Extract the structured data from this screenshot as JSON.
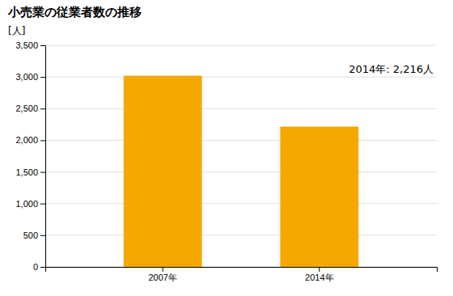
{
  "chart_data": {
    "type": "bar",
    "title": "小売業の従業者数の推移",
    "ylabel": "[人]",
    "annotation": "2014年: 2,216人",
    "categories": [
      "2007年",
      "2014年"
    ],
    "values": [
      3020,
      2216
    ],
    "color": "#F5A800",
    "ylim": [
      0,
      3500
    ],
    "yticks": [
      0,
      500,
      {
        "value": 1000,
        "label": "1,000"
      },
      {
        "value": 1500,
        "label": "1,500"
      },
      {
        "value": 2000,
        "label": "2,000"
      },
      {
        "value": 2500,
        "label": "2,500"
      },
      {
        "value": 3000,
        "label": "3,000"
      },
      {
        "value": 3500,
        "label": "3,500"
      }
    ],
    "grid": true
  }
}
